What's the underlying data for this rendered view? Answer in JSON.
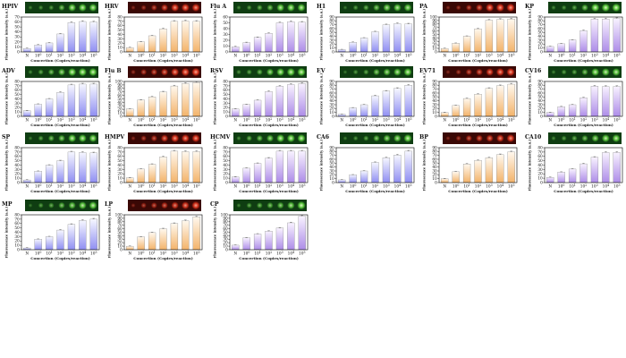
{
  "figure": {
    "xlabel": "Concertion (Copies/reaction)",
    "ylabel": "Fluorescence intensity (a.u.)",
    "categories": [
      "N",
      "10^0",
      "10^1",
      "10^2",
      "10^3",
      "10^4",
      "10^5"
    ],
    "colors": {
      "blue_top": "#f6f7ff",
      "blue_bottom": "#8f8ef2",
      "orange_top": "#fff8ee",
      "orange_bottom": "#f3b36a",
      "purple_top": "#f8f2ff",
      "purple_bottom": "#ad8ce8",
      "green_strip": "#0f3d12",
      "red_strip": "#3a0805"
    }
  },
  "chart_data": [
    {
      "type": "bar",
      "title": "HPIV",
      "strip": "green",
      "gradient": "blue",
      "ylim": [
        0,
        70
      ],
      "yticks": [
        0,
        10,
        20,
        30,
        40,
        50,
        60,
        70
      ],
      "values": [
        7,
        14,
        18,
        36,
        59,
        61,
        60
      ]
    },
    {
      "type": "bar",
      "title": "HRV",
      "strip": "red",
      "gradient": "orange",
      "ylim": [
        0,
        80
      ],
      "yticks": [
        0,
        10,
        20,
        30,
        40,
        50,
        60,
        70,
        80
      ],
      "values": [
        10,
        23,
        37,
        53,
        70,
        71,
        70
      ]
    },
    {
      "type": "bar",
      "title": "Flu A",
      "strip": "green",
      "gradient": "purple",
      "ylim": [
        0,
        60
      ],
      "yticks": [
        0,
        10,
        20,
        30,
        40,
        50,
        60
      ],
      "values": [
        9,
        16,
        25,
        32,
        50,
        52,
        51
      ]
    },
    {
      "type": "bar",
      "title": "H1",
      "strip": "green",
      "gradient": "blue",
      "ylim": [
        0,
        90
      ],
      "yticks": [
        0,
        10,
        20,
        30,
        40,
        50,
        60,
        70,
        80,
        90
      ],
      "values": [
        6,
        25,
        36,
        52,
        70,
        73,
        72
      ]
    },
    {
      "type": "bar",
      "title": "PA",
      "strip": "red",
      "gradient": "orange",
      "ylim": [
        0,
        100
      ],
      "yticks": [
        0,
        10,
        20,
        30,
        40,
        50,
        60,
        70,
        80,
        90,
        100
      ],
      "values": [
        10,
        25,
        45,
        66,
        91,
        93,
        94
      ]
    },
    {
      "type": "bar",
      "title": "KP",
      "strip": "green",
      "gradient": "purple",
      "ylim": [
        0,
        90
      ],
      "yticks": [
        0,
        10,
        20,
        30,
        40,
        50,
        60,
        70,
        80,
        90
      ],
      "values": [
        14,
        21,
        31,
        55,
        85,
        85,
        86
      ]
    },
    {
      "type": "bar",
      "title": "ADV",
      "strip": "green",
      "gradient": "blue",
      "ylim": [
        0,
        80
      ],
      "yticks": [
        0,
        10,
        20,
        30,
        40,
        50,
        60,
        70,
        80
      ],
      "values": [
        13,
        28,
        40,
        55,
        72,
        74,
        74
      ]
    },
    {
      "type": "bar",
      "title": "Flu B",
      "strip": "red",
      "gradient": "orange",
      "ylim": [
        0,
        100
      ],
      "yticks": [
        0,
        10,
        20,
        30,
        40,
        50,
        60,
        70,
        80,
        90,
        100
      ],
      "values": [
        21,
        47,
        56,
        70,
        87,
        94,
        97
      ]
    },
    {
      "type": "bar",
      "title": "RSV",
      "strip": "green",
      "gradient": "purple",
      "ylim": [
        0,
        80
      ],
      "yticks": [
        0,
        10,
        20,
        30,
        40,
        50,
        60,
        70,
        80
      ],
      "values": [
        17,
        27,
        37,
        57,
        69,
        73,
        75
      ]
    },
    {
      "type": "bar",
      "title": "EV",
      "strip": "green",
      "gradient": "blue",
      "ylim": [
        0,
        90
      ],
      "yticks": [
        0,
        10,
        20,
        30,
        40,
        50,
        60,
        70,
        80,
        90
      ],
      "values": [
        5,
        22,
        30,
        53,
        65,
        72,
        80
      ]
    },
    {
      "type": "bar",
      "title": "EV71",
      "strip": "red",
      "gradient": "orange",
      "ylim": [
        0,
        90
      ],
      "yticks": [
        0,
        10,
        20,
        30,
        40,
        50,
        60,
        70,
        80,
        90
      ],
      "values": [
        10,
        28,
        46,
        57,
        72,
        79,
        83
      ]
    },
    {
      "type": "bar",
      "title": "CV16",
      "strip": "green",
      "gradient": "purple",
      "ylim": [
        0,
        90
      ],
      "yticks": [
        0,
        10,
        20,
        30,
        40,
        50,
        60,
        70,
        80,
        90
      ],
      "values": [
        10,
        25,
        30,
        48,
        78,
        77,
        77
      ]
    },
    {
      "type": "bar",
      "title": "SP",
      "strip": "green",
      "gradient": "blue",
      "ylim": [
        0,
        80
      ],
      "yticks": [
        0,
        10,
        20,
        30,
        40,
        50,
        60,
        70,
        80
      ],
      "values": [
        6,
        26,
        40,
        50,
        70,
        69,
        68
      ]
    },
    {
      "type": "bar",
      "title": "HMPV",
      "strip": "red",
      "gradient": "orange",
      "ylim": [
        0,
        80
      ],
      "yticks": [
        0,
        10,
        20,
        30,
        40,
        50,
        60,
        70,
        80
      ],
      "values": [
        11,
        31,
        42,
        59,
        72,
        71,
        71
      ]
    },
    {
      "type": "bar",
      "title": "HCMV",
      "strip": "green",
      "gradient": "purple",
      "ylim": [
        0,
        80
      ],
      "yticks": [
        0,
        10,
        20,
        30,
        40,
        50,
        60,
        70,
        80
      ],
      "values": [
        13,
        33,
        44,
        56,
        72,
        72,
        72
      ]
    },
    {
      "type": "bar",
      "title": "CA6",
      "strip": "green",
      "gradient": "blue",
      "ylim": [
        0,
        90
      ],
      "yticks": [
        0,
        10,
        20,
        30,
        40,
        50,
        60,
        70,
        80,
        90
      ],
      "values": [
        7,
        20,
        30,
        52,
        64,
        71,
        81
      ]
    },
    {
      "type": "bar",
      "title": "BP",
      "strip": "red",
      "gradient": "orange",
      "ylim": [
        0,
        90
      ],
      "yticks": [
        0,
        10,
        20,
        30,
        40,
        50,
        60,
        70,
        80,
        90
      ],
      "values": [
        10,
        28,
        48,
        57,
        64,
        72,
        79
      ]
    },
    {
      "type": "bar",
      "title": "CA10",
      "strip": "green",
      "gradient": "purple",
      "ylim": [
        0,
        80
      ],
      "yticks": [
        0,
        10,
        20,
        30,
        40,
        50,
        60,
        70,
        80
      ],
      "values": [
        12,
        24,
        31,
        43,
        58,
        69,
        69
      ]
    },
    {
      "type": "bar",
      "title": "MP",
      "strip": "green",
      "gradient": "blue",
      "ylim": [
        0,
        80
      ],
      "yticks": [
        0,
        10,
        20,
        30,
        40,
        50,
        60,
        70,
        80
      ],
      "values": [
        4,
        24,
        30,
        45,
        58,
        67,
        70
      ]
    },
    {
      "type": "bar",
      "title": "LP",
      "strip": "red",
      "gradient": "orange",
      "ylim": [
        0,
        100
      ],
      "yticks": [
        0,
        10,
        20,
        30,
        40,
        50,
        60,
        70,
        80,
        90,
        100
      ],
      "values": [
        10,
        37,
        49,
        60,
        75,
        83,
        94
      ]
    },
    {
      "type": "bar",
      "title": "CP",
      "strip": "green",
      "gradient": "purple",
      "ylim": [
        0,
        100
      ],
      "yticks": [
        0,
        10,
        20,
        30,
        40,
        50,
        60,
        70,
        80,
        90,
        100
      ],
      "values": [
        13,
        34,
        45,
        53,
        62,
        77,
        96
      ]
    }
  ]
}
